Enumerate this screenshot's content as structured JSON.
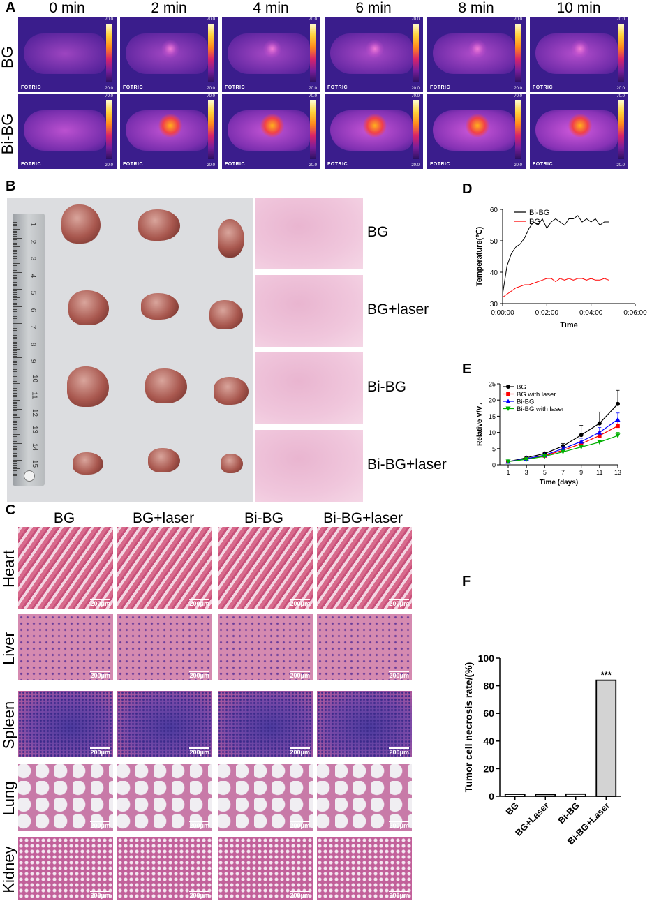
{
  "panels": {
    "a": "A",
    "b": "B",
    "c": "C",
    "d": "D",
    "e": "E",
    "f": "F"
  },
  "panel_a": {
    "times": [
      "0 min",
      "2 min",
      "4 min",
      "6 min",
      "8 min",
      "10 min"
    ],
    "rows": [
      "BG",
      "Bi-BG"
    ],
    "brand": "FOTRIC",
    "scale_max": "70.0",
    "scale_min": "20.0"
  },
  "panel_b": {
    "groups": [
      "BG",
      "BG+laser",
      "Bi-BG",
      "Bi-BG+laser"
    ],
    "ruler_numbers": [
      "1",
      "2",
      "3",
      "4",
      "5",
      "6",
      "7",
      "8",
      "9",
      "10",
      "11",
      "12",
      "13",
      "14",
      "15"
    ]
  },
  "panel_c": {
    "columns": [
      "BG",
      "BG+laser",
      "Bi-BG",
      "Bi-BG+laser"
    ],
    "rows": [
      "Heart",
      "Liver",
      "Spleen",
      "Lung",
      "Kidney"
    ],
    "scale_bar": "200μm"
  },
  "chart_data": [
    {
      "id": "D",
      "type": "line",
      "xlabel": "Time",
      "ylabel": "Temperature(℃)",
      "xticks": [
        "0:00:00",
        "0:02:00",
        "0:04:00",
        "0:06:00"
      ],
      "xlim": [
        0,
        6
      ],
      "ylim": [
        30,
        60
      ],
      "yticks": [
        30,
        40,
        50,
        60
      ],
      "series": [
        {
          "name": "Bi-BG",
          "color": "#000000",
          "x": [
            0,
            0.2,
            0.4,
            0.6,
            0.8,
            1.0,
            1.2,
            1.4,
            1.6,
            1.8,
            2.0,
            2.2,
            2.4,
            2.6,
            2.8,
            3.0,
            3.2,
            3.4,
            3.6,
            3.8,
            4.0,
            4.2,
            4.4,
            4.6,
            4.8
          ],
          "y": [
            33,
            42,
            46,
            48,
            49,
            51,
            54,
            56,
            55,
            57,
            54,
            56,
            57,
            56,
            55,
            57,
            57,
            58,
            56,
            57,
            56,
            57,
            55,
            56,
            56
          ]
        },
        {
          "name": "BG",
          "color": "#ff0000",
          "x": [
            0,
            0.2,
            0.4,
            0.6,
            0.8,
            1.0,
            1.2,
            1.4,
            1.6,
            1.8,
            2.0,
            2.2,
            2.4,
            2.6,
            2.8,
            3.0,
            3.2,
            3.4,
            3.6,
            3.8,
            4.0,
            4.2,
            4.4,
            4.6,
            4.8
          ],
          "y": [
            32,
            33,
            34,
            35,
            35.5,
            36,
            36,
            36.5,
            37,
            37.5,
            38,
            38,
            37,
            38,
            37.5,
            38,
            37.5,
            38,
            38,
            37.5,
            38,
            37.5,
            37.5,
            38,
            37.5
          ]
        }
      ],
      "legend": "top-left"
    },
    {
      "id": "E",
      "type": "line",
      "xlabel": "Time (days)",
      "ylabel": "Relative V/V₀",
      "x": [
        1,
        3,
        5,
        7,
        9,
        11,
        13
      ],
      "ylim": [
        0,
        25
      ],
      "yticks": [
        0,
        5,
        10,
        15,
        20,
        25
      ],
      "series": [
        {
          "name": "BG",
          "color": "#000000",
          "marker": "circle",
          "values": [
            1,
            2.2,
            3.5,
            5.8,
            9.2,
            12.8,
            18.8
          ],
          "err": [
            0.1,
            0.3,
            0.4,
            0.8,
            3,
            3.5,
            4.2
          ]
        },
        {
          "name": "BG with laser",
          "color": "#ff0000",
          "marker": "square",
          "values": [
            1,
            1.8,
            2.8,
            4.5,
            6.5,
            9,
            12
          ],
          "err": [
            0.1,
            0.2,
            0.3,
            0.5,
            0.8,
            1.2,
            1.5
          ]
        },
        {
          "name": "Bi-BG",
          "color": "#0000ff",
          "marker": "triangle",
          "values": [
            1,
            1.9,
            3,
            5,
            7.2,
            10,
            14
          ],
          "err": [
            0.1,
            0.2,
            0.3,
            0.6,
            1,
            1.5,
            2
          ]
        },
        {
          "name": "Bi-BG with laser",
          "color": "#00b000",
          "marker": "triangle-down",
          "values": [
            1,
            1.7,
            2.6,
            4,
            5.5,
            7,
            9
          ],
          "err": [
            0.1,
            0.2,
            0.3,
            0.4,
            0.5,
            0.6,
            1
          ]
        }
      ],
      "legend": "top-left"
    },
    {
      "id": "F",
      "type": "bar",
      "ylabel": "Tumor cell necrosis rate/(%)",
      "categories": [
        "BG",
        "BG+Laser",
        "Bi-BG",
        "Bi-BG+Laser"
      ],
      "values": [
        1.5,
        1.3,
        1.6,
        84
      ],
      "ylim": [
        0,
        100
      ],
      "yticks": [
        0,
        20,
        40,
        60,
        80,
        100
      ],
      "annotation": "***",
      "bar_colors": [
        "#ffffff",
        "#ffffff",
        "#ffffff",
        "#d3d3d3"
      ]
    }
  ]
}
